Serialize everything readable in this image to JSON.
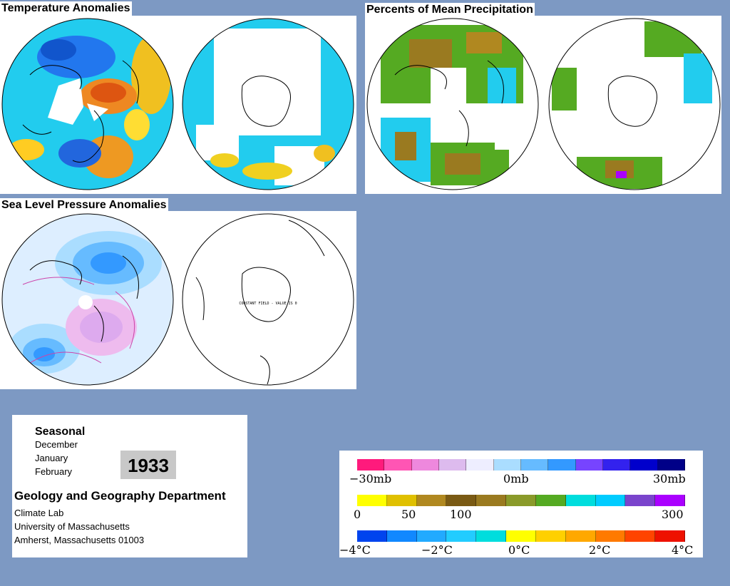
{
  "panels": {
    "temperature": {
      "title": "Temperature Anomalies"
    },
    "precipitation": {
      "title": "Percents of Mean Precipitation"
    },
    "pressure": {
      "title": "Sea Level Pressure Anomalies",
      "southern_note": "CONSTANT FIELD - VALUE IS 0"
    }
  },
  "info": {
    "heading": "Seasonal",
    "months": [
      "December",
      "January",
      "February"
    ],
    "year": "1933",
    "department": "Geology and Geography Department",
    "address_lines": [
      "Climate Lab",
      "University of Massachusetts",
      "Amherst, Massachusetts 01003"
    ]
  },
  "legends": {
    "pressure": {
      "labels": [
        "−30mb",
        "0mb",
        "30mb"
      ],
      "colors": [
        "#ff1a7c",
        "#ff55b4",
        "#ee88dd",
        "#ddbbee",
        "#eeeeff",
        "#aaddff",
        "#66bbff",
        "#3399ff",
        "#7744ff",
        "#3322ee",
        "#0000cc",
        "#000088"
      ]
    },
    "precipitation": {
      "labels": [
        "0",
        "50",
        "100",
        "300"
      ],
      "colors": [
        "#ffff00",
        "#e0c000",
        "#b08820",
        "#7a5a14",
        "#9a7a20",
        "#8a9a2a",
        "#55aa22",
        "#00dddd",
        "#00ccff",
        "#7a44cc",
        "#aa00ff"
      ]
    },
    "temperature": {
      "labels": [
        "−4°C",
        "−2°C",
        "0°C",
        "2°C",
        "4°C"
      ],
      "colors": [
        "#0044ee",
        "#1188ff",
        "#22aaff",
        "#22ccff",
        "#00dddd",
        "#ffff00",
        "#ffd000",
        "#ffa800",
        "#ff7a00",
        "#ff4400",
        "#ee1100"
      ]
    }
  }
}
